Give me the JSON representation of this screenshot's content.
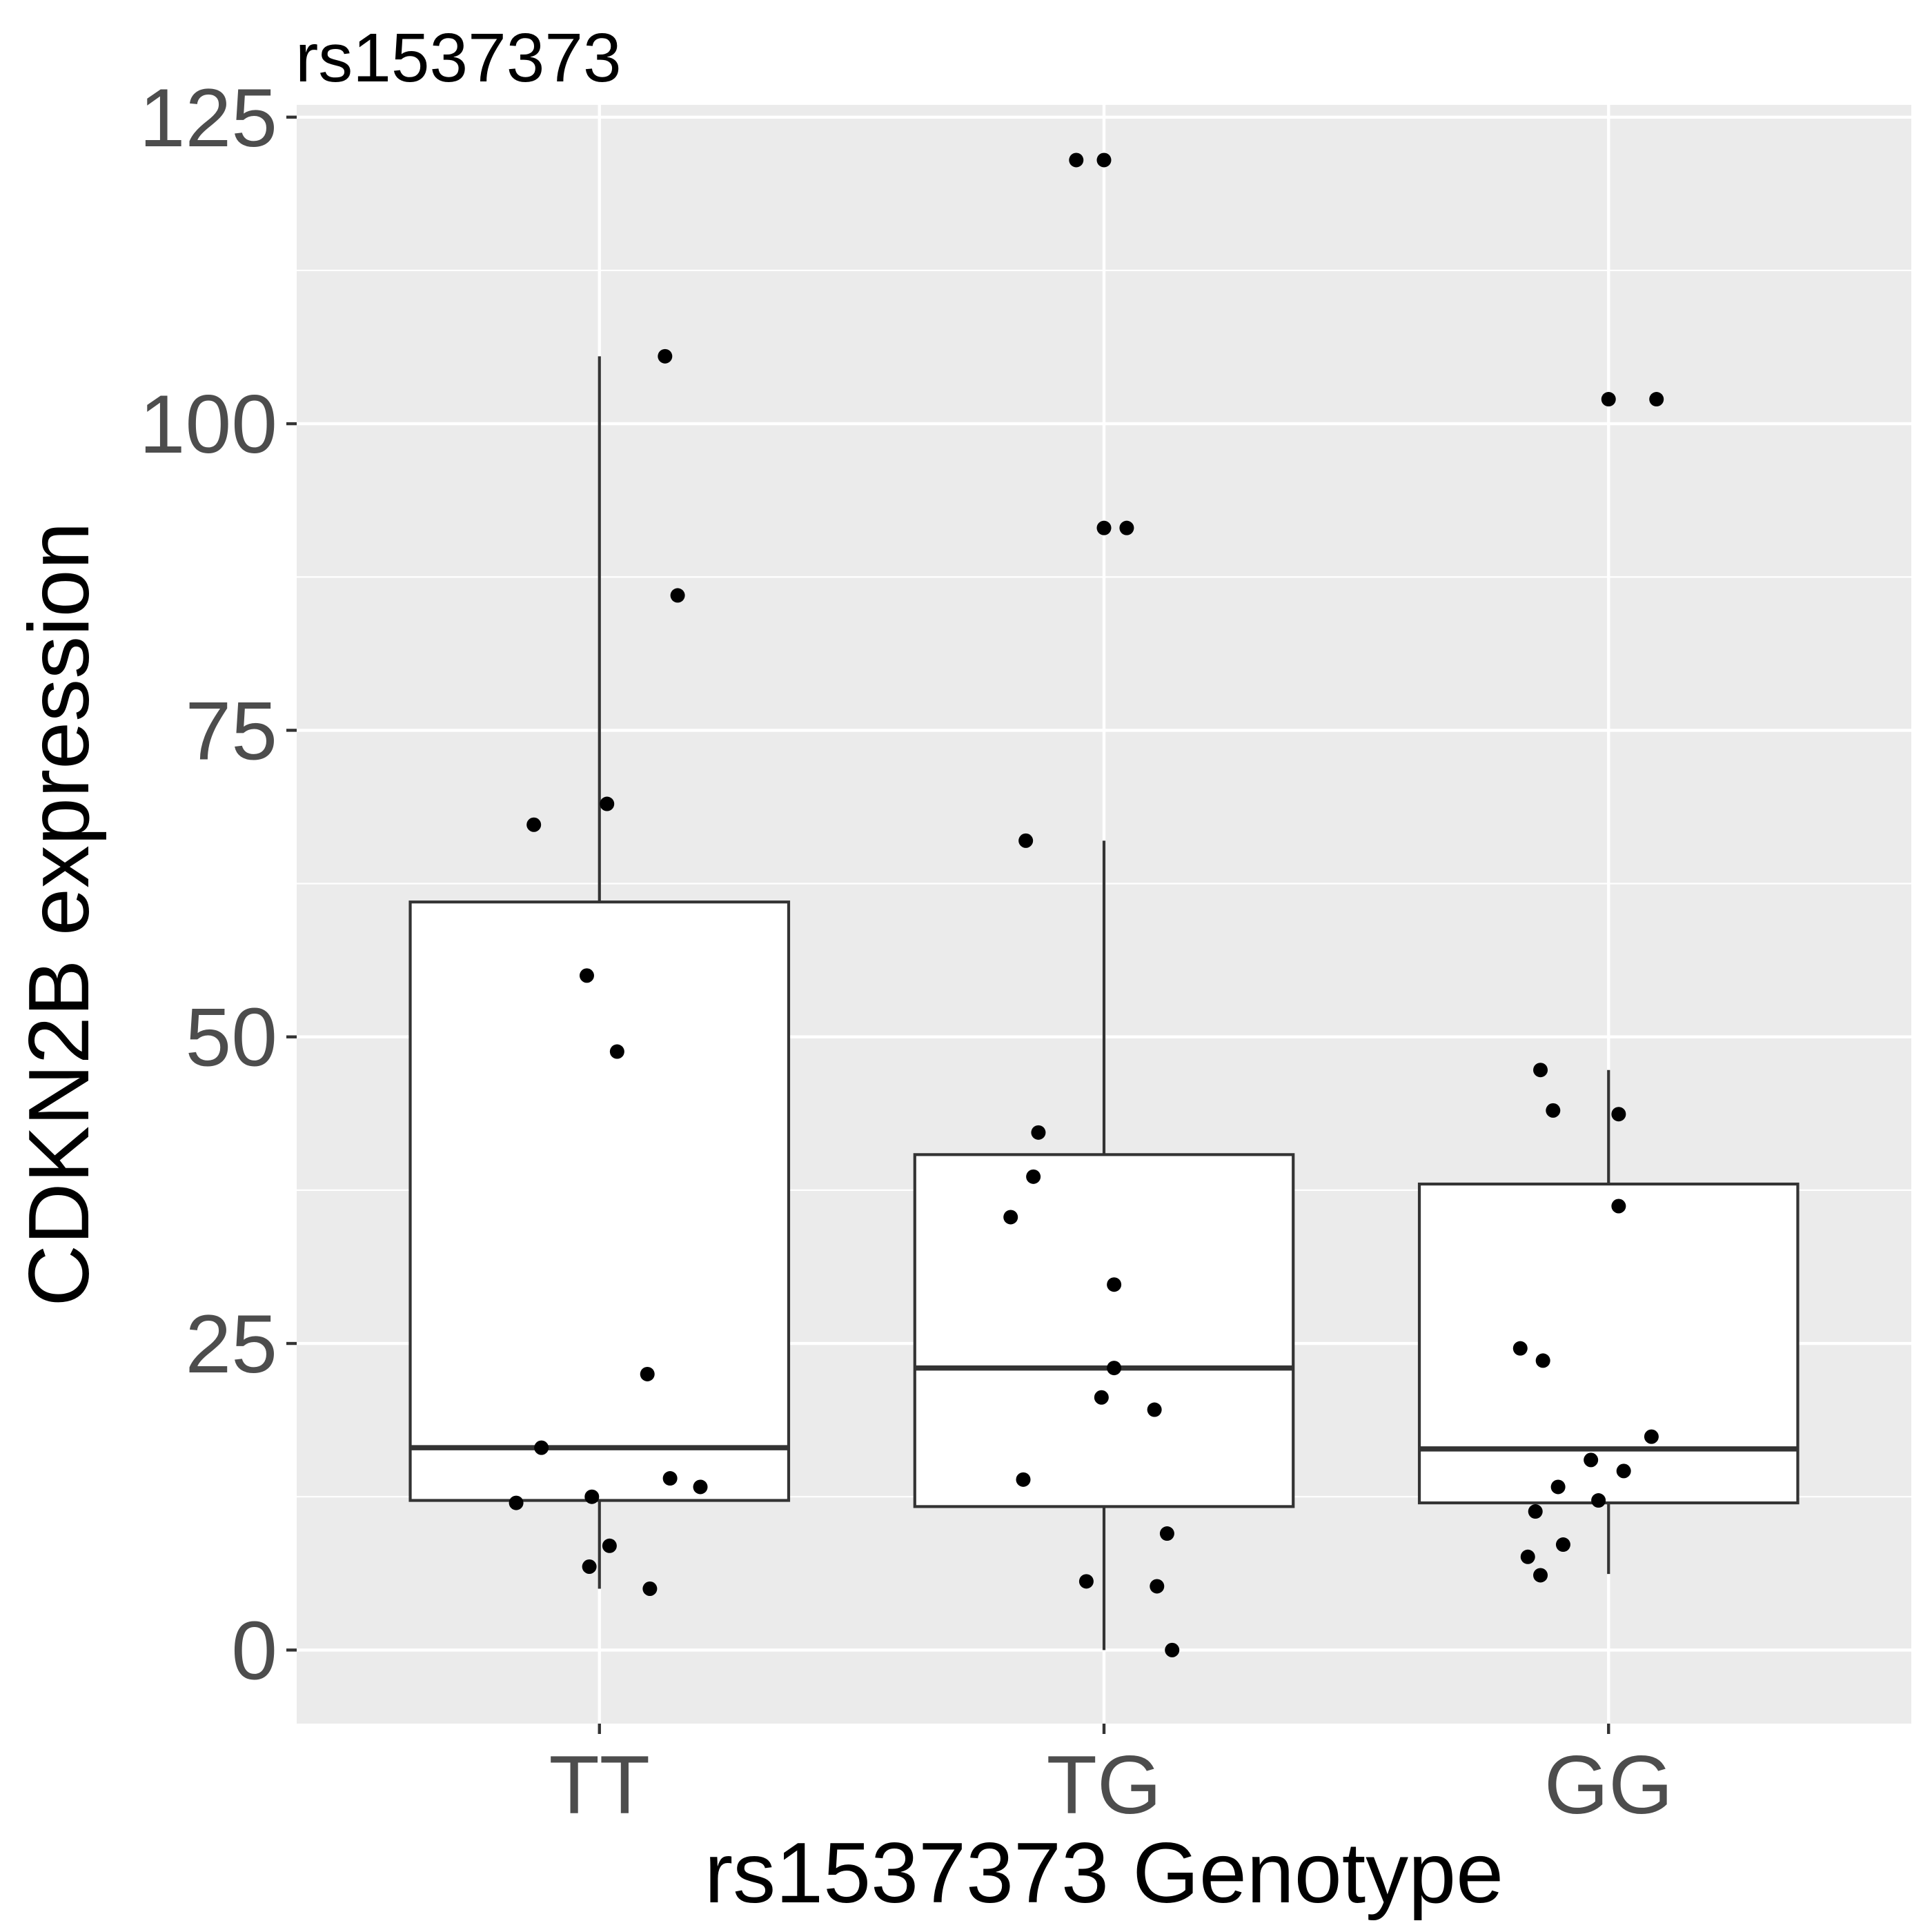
{
  "chart_data": {
    "type": "boxplot",
    "title": "rs1537373",
    "xlabel": "rs1537373 Genotype",
    "ylabel": "CDKN2B expression",
    "ylim": [
      -6,
      126
    ],
    "yticks": [
      0,
      25,
      50,
      75,
      100,
      125
    ],
    "grid": true,
    "legend": "none",
    "colors": {
      "panel_background": "#ebebeb",
      "grid_line": "#ffffff",
      "box_fill": "#ffffff",
      "box_stroke": "#333333",
      "point": "#000000",
      "tick_label": "#4d4d4d"
    },
    "categories": [
      "TT",
      "TG",
      "GG"
    ],
    "boxes": [
      {
        "category": "TT",
        "whisker_low": 5,
        "q1": 12.2,
        "median": 16.5,
        "q3": 61,
        "whisker_high": 105.5
      },
      {
        "category": "TG",
        "whisker_low": 0,
        "q1": 11.7,
        "median": 23,
        "q3": 40.4,
        "whisker_high": 66
      },
      {
        "category": "GG",
        "whisker_low": 6.2,
        "q1": 12,
        "median": 16.4,
        "q3": 38,
        "whisker_high": 47.3
      }
    ],
    "points": [
      {
        "category": "TT",
        "x_offset": 0.13,
        "y": 105.5
      },
      {
        "category": "TT",
        "x_offset": 0.155,
        "y": 86
      },
      {
        "category": "TT",
        "x_offset": 0.015,
        "y": 69
      },
      {
        "category": "TT",
        "x_offset": -0.13,
        "y": 67.3
      },
      {
        "category": "TT",
        "x_offset": -0.025,
        "y": 55
      },
      {
        "category": "TT",
        "x_offset": 0.035,
        "y": 48.8
      },
      {
        "category": "TT",
        "x_offset": 0.095,
        "y": 22.5
      },
      {
        "category": "TT",
        "x_offset": -0.115,
        "y": 16.5
      },
      {
        "category": "TT",
        "x_offset": 0.14,
        "y": 14
      },
      {
        "category": "TT",
        "x_offset": 0.2,
        "y": 13.3
      },
      {
        "category": "TT",
        "x_offset": -0.015,
        "y": 12.5
      },
      {
        "category": "TT",
        "x_offset": -0.165,
        "y": 12
      },
      {
        "category": "TT",
        "x_offset": 0.02,
        "y": 8.5
      },
      {
        "category": "TT",
        "x_offset": -0.02,
        "y": 6.8
      },
      {
        "category": "TT",
        "x_offset": 0.1,
        "y": 5
      },
      {
        "category": "TG",
        "x_offset": -0.055,
        "y": 121.5
      },
      {
        "category": "TG",
        "x_offset": 0.0,
        "y": 121.5
      },
      {
        "category": "TG",
        "x_offset": 0.0,
        "y": 91.5
      },
      {
        "category": "TG",
        "x_offset": 0.045,
        "y": 91.5
      },
      {
        "category": "TG",
        "x_offset": -0.155,
        "y": 66
      },
      {
        "category": "TG",
        "x_offset": -0.13,
        "y": 42.2
      },
      {
        "category": "TG",
        "x_offset": -0.14,
        "y": 38.6
      },
      {
        "category": "TG",
        "x_offset": -0.185,
        "y": 35.3
      },
      {
        "category": "TG",
        "x_offset": 0.02,
        "y": 29.8
      },
      {
        "category": "TG",
        "x_offset": 0.02,
        "y": 23
      },
      {
        "category": "TG",
        "x_offset": -0.005,
        "y": 20.6
      },
      {
        "category": "TG",
        "x_offset": 0.1,
        "y": 19.6
      },
      {
        "category": "TG",
        "x_offset": -0.16,
        "y": 13.9
      },
      {
        "category": "TG",
        "x_offset": 0.125,
        "y": 9.5
      },
      {
        "category": "TG",
        "x_offset": -0.035,
        "y": 5.6
      },
      {
        "category": "TG",
        "x_offset": 0.105,
        "y": 5.2
      },
      {
        "category": "TG",
        "x_offset": 0.135,
        "y": 0
      },
      {
        "category": "GG",
        "x_offset": 0.0,
        "y": 102
      },
      {
        "category": "GG",
        "x_offset": 0.095,
        "y": 102
      },
      {
        "category": "GG",
        "x_offset": -0.135,
        "y": 47.3
      },
      {
        "category": "GG",
        "x_offset": -0.11,
        "y": 44
      },
      {
        "category": "GG",
        "x_offset": 0.02,
        "y": 43.7
      },
      {
        "category": "GG",
        "x_offset": 0.02,
        "y": 36.2
      },
      {
        "category": "GG",
        "x_offset": -0.175,
        "y": 24.6
      },
      {
        "category": "GG",
        "x_offset": -0.13,
        "y": 23.6
      },
      {
        "category": "GG",
        "x_offset": 0.085,
        "y": 17.4
      },
      {
        "category": "GG",
        "x_offset": -0.035,
        "y": 15.5
      },
      {
        "category": "GG",
        "x_offset": 0.03,
        "y": 14.6
      },
      {
        "category": "GG",
        "x_offset": -0.1,
        "y": 13.3
      },
      {
        "category": "GG",
        "x_offset": -0.02,
        "y": 12.2
      },
      {
        "category": "GG",
        "x_offset": -0.145,
        "y": 11.3
      },
      {
        "category": "GG",
        "x_offset": -0.09,
        "y": 8.6
      },
      {
        "category": "GG",
        "x_offset": -0.16,
        "y": 7.6
      },
      {
        "category": "GG",
        "x_offset": -0.135,
        "y": 6.1
      }
    ]
  }
}
